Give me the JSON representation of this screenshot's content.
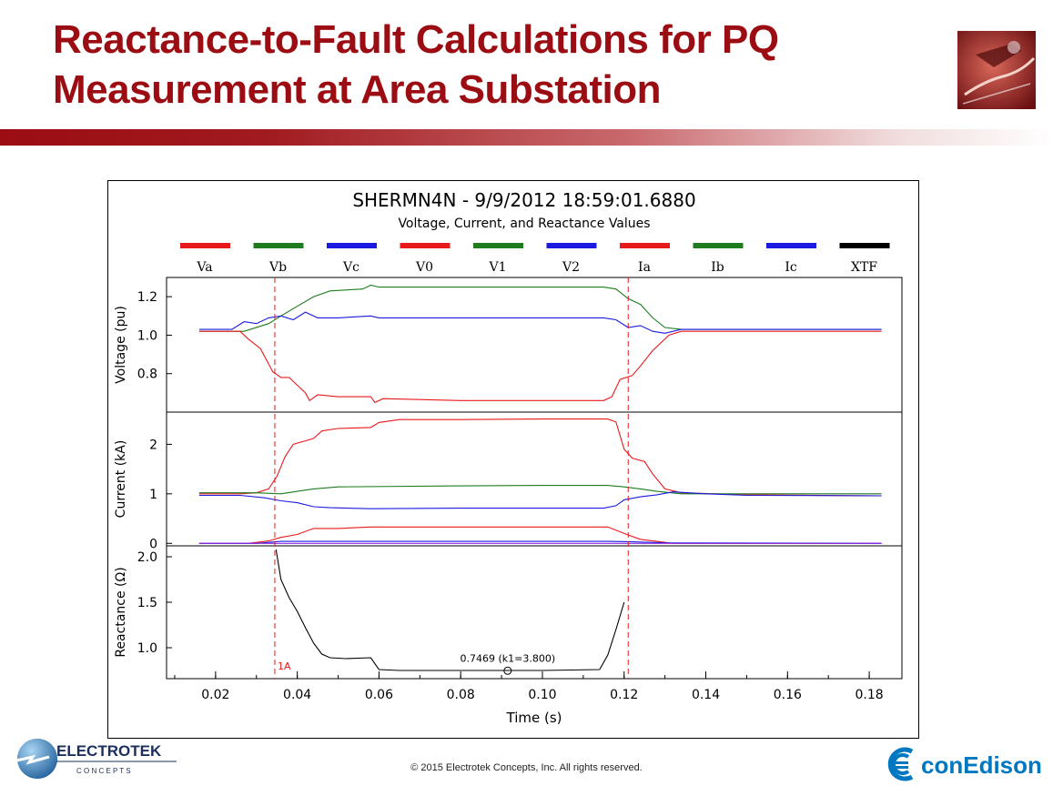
{
  "slide": {
    "title_line1": "Reactance-to-Fault Calculations for PQ",
    "title_line2": "Measurement at Area Substation",
    "copyright": "© 2015 Electrotek Concepts,  Inc. All rights reserved.",
    "logo_left_name": "ELECTROTEK",
    "logo_left_sub": "C O N C E P T S",
    "logo_right_name": "conEdison"
  },
  "chart_data": {
    "type": "line",
    "title": "SHERMN4N - 9/9/2012 18:59:01.6880",
    "subtitle": "Voltage, Current, and Reactance Values",
    "legend": [
      {
        "name": "Va",
        "color": "#e8191b"
      },
      {
        "name": "Vb",
        "color": "#1e7b1e"
      },
      {
        "name": "Vc",
        "color": "#1a1ae0"
      },
      {
        "name": "V0",
        "color": "#e8191b"
      },
      {
        "name": "V1",
        "color": "#1e7b1e"
      },
      {
        "name": "V2",
        "color": "#1a1ae0"
      },
      {
        "name": "Ia",
        "color": "#e8191b"
      },
      {
        "name": "Ib",
        "color": "#1e7b1e"
      },
      {
        "name": "Ic",
        "color": "#1a1ae0"
      },
      {
        "name": "XTF",
        "color": "#000000"
      }
    ],
    "xlabel": "Time (s)",
    "xlim": [
      0.008,
      0.188
    ],
    "xticks": [
      0.02,
      0.04,
      0.06,
      0.08,
      0.1,
      0.12,
      0.14,
      0.16,
      0.18
    ],
    "xtick_labels": [
      "0.02",
      "0.04",
      "0.06",
      "0.08",
      "0.10",
      "0.12",
      "0.14",
      "0.16",
      "0.18"
    ],
    "cursors": [
      {
        "x": 0.0345,
        "label": "1A"
      },
      {
        "x": 0.121,
        "label": ""
      }
    ],
    "panels": [
      {
        "name": "voltage",
        "ylabel": "Voltage (pu)",
        "ylim": [
          0.6,
          1.3
        ],
        "yticks": [
          0.8,
          1.0,
          1.2
        ],
        "ytick_labels": [
          "0.8",
          "1.0",
          "1.2"
        ],
        "series": [
          {
            "name": "Vb",
            "color": "#1e7b1e",
            "points": [
              [
                0.016,
                1.02
              ],
              [
                0.027,
                1.02
              ],
              [
                0.033,
                1.06
              ],
              [
                0.036,
                1.1
              ],
              [
                0.04,
                1.15
              ],
              [
                0.044,
                1.2
              ],
              [
                0.048,
                1.23
              ],
              [
                0.056,
                1.24
              ],
              [
                0.058,
                1.26
              ],
              [
                0.06,
                1.25
              ],
              [
                0.08,
                1.25
              ],
              [
                0.1,
                1.25
              ],
              [
                0.115,
                1.25
              ],
              [
                0.118,
                1.24
              ],
              [
                0.121,
                1.19
              ],
              [
                0.124,
                1.16
              ],
              [
                0.127,
                1.09
              ],
              [
                0.13,
                1.04
              ],
              [
                0.134,
                1.03
              ],
              [
                0.15,
                1.03
              ],
              [
                0.183,
                1.03
              ]
            ]
          },
          {
            "name": "Vc",
            "color": "#1a1ae0",
            "points": [
              [
                0.016,
                1.03
              ],
              [
                0.024,
                1.03
              ],
              [
                0.027,
                1.07
              ],
              [
                0.03,
                1.06
              ],
              [
                0.033,
                1.09
              ],
              [
                0.036,
                1.1
              ],
              [
                0.039,
                1.08
              ],
              [
                0.042,
                1.12
              ],
              [
                0.045,
                1.09
              ],
              [
                0.05,
                1.09
              ],
              [
                0.058,
                1.1
              ],
              [
                0.06,
                1.09
              ],
              [
                0.08,
                1.09
              ],
              [
                0.1,
                1.09
              ],
              [
                0.115,
                1.09
              ],
              [
                0.118,
                1.08
              ],
              [
                0.121,
                1.04
              ],
              [
                0.124,
                1.05
              ],
              [
                0.127,
                1.02
              ],
              [
                0.13,
                1.01
              ],
              [
                0.134,
                1.03
              ],
              [
                0.15,
                1.03
              ],
              [
                0.183,
                1.03
              ]
            ]
          },
          {
            "name": "Va",
            "color": "#e8191b",
            "points": [
              [
                0.016,
                1.02
              ],
              [
                0.026,
                1.02
              ],
              [
                0.028,
                0.98
              ],
              [
                0.031,
                0.93
              ],
              [
                0.034,
                0.81
              ],
              [
                0.036,
                0.78
              ],
              [
                0.038,
                0.78
              ],
              [
                0.04,
                0.74
              ],
              [
                0.042,
                0.7
              ],
              [
                0.043,
                0.66
              ],
              [
                0.045,
                0.69
              ],
              [
                0.05,
                0.68
              ],
              [
                0.058,
                0.68
              ],
              [
                0.059,
                0.65
              ],
              [
                0.061,
                0.67
              ],
              [
                0.08,
                0.66
              ],
              [
                0.1,
                0.66
              ],
              [
                0.115,
                0.66
              ],
              [
                0.117,
                0.68
              ],
              [
                0.119,
                0.77
              ],
              [
                0.122,
                0.79
              ],
              [
                0.124,
                0.84
              ],
              [
                0.127,
                0.92
              ],
              [
                0.131,
                1.0
              ],
              [
                0.134,
                1.02
              ],
              [
                0.15,
                1.02
              ],
              [
                0.183,
                1.02
              ]
            ]
          }
        ]
      },
      {
        "name": "current",
        "ylabel": "Current (kA)",
        "ylim": [
          -0.05,
          2.65
        ],
        "yticks": [
          0,
          1,
          2
        ],
        "ytick_labels": [
          "0",
          "1",
          "2"
        ],
        "series": [
          {
            "name": "Ia",
            "color": "#e8191b",
            "points": [
              [
                0.016,
                1.0
              ],
              [
                0.026,
                1.0
              ],
              [
                0.03,
                1.02
              ],
              [
                0.033,
                1.1
              ],
              [
                0.035,
                1.35
              ],
              [
                0.037,
                1.75
              ],
              [
                0.039,
                2.0
              ],
              [
                0.042,
                2.07
              ],
              [
                0.044,
                2.12
              ],
              [
                0.046,
                2.27
              ],
              [
                0.05,
                2.32
              ],
              [
                0.058,
                2.34
              ],
              [
                0.06,
                2.44
              ],
              [
                0.065,
                2.5
              ],
              [
                0.08,
                2.5
              ],
              [
                0.1,
                2.51
              ],
              [
                0.116,
                2.51
              ],
              [
                0.118,
                2.45
              ],
              [
                0.12,
                1.9
              ],
              [
                0.122,
                1.72
              ],
              [
                0.125,
                1.65
              ],
              [
                0.127,
                1.4
              ],
              [
                0.13,
                1.1
              ],
              [
                0.134,
                1.02
              ],
              [
                0.15,
                0.98
              ],
              [
                0.183,
                0.96
              ]
            ]
          },
          {
            "name": "Ib",
            "color": "#1e7b1e",
            "points": [
              [
                0.016,
                1.02
              ],
              [
                0.03,
                1.02
              ],
              [
                0.036,
                1.0
              ],
              [
                0.04,
                1.05
              ],
              [
                0.044,
                1.1
              ],
              [
                0.05,
                1.14
              ],
              [
                0.08,
                1.16
              ],
              [
                0.1,
                1.17
              ],
              [
                0.116,
                1.17
              ],
              [
                0.12,
                1.14
              ],
              [
                0.124,
                1.1
              ],
              [
                0.128,
                1.05
              ],
              [
                0.134,
                1.0
              ],
              [
                0.15,
                1.0
              ],
              [
                0.183,
                1.0
              ]
            ]
          },
          {
            "name": "Ic",
            "color": "#1a1ae0",
            "points": [
              [
                0.016,
                0.97
              ],
              [
                0.026,
                0.97
              ],
              [
                0.032,
                0.92
              ],
              [
                0.036,
                0.86
              ],
              [
                0.04,
                0.82
              ],
              [
                0.044,
                0.74
              ],
              [
                0.048,
                0.72
              ],
              [
                0.058,
                0.7
              ],
              [
                0.08,
                0.71
              ],
              [
                0.1,
                0.71
              ],
              [
                0.115,
                0.71
              ],
              [
                0.118,
                0.76
              ],
              [
                0.12,
                0.88
              ],
              [
                0.124,
                0.94
              ],
              [
                0.128,
                0.98
              ],
              [
                0.132,
                1.04
              ],
              [
                0.14,
                1.0
              ],
              [
                0.15,
                0.97
              ],
              [
                0.183,
                0.96
              ]
            ]
          },
          {
            "name": "V0",
            "color": "#e8191b",
            "points": [
              [
                0.016,
                0.0
              ],
              [
                0.028,
                0.0
              ],
              [
                0.033,
                0.05
              ],
              [
                0.036,
                0.12
              ],
              [
                0.04,
                0.18
              ],
              [
                0.044,
                0.3
              ],
              [
                0.05,
                0.3
              ],
              [
                0.058,
                0.33
              ],
              [
                0.08,
                0.33
              ],
              [
                0.1,
                0.33
              ],
              [
                0.116,
                0.33
              ],
              [
                0.12,
                0.2
              ],
              [
                0.124,
                0.08
              ],
              [
                0.128,
                0.04
              ],
              [
                0.132,
                0.0
              ],
              [
                0.183,
                0.0
              ]
            ]
          },
          {
            "name": "V2",
            "color": "#1a1ae0",
            "points": [
              [
                0.016,
                0.0
              ],
              [
                0.03,
                0.0
              ],
              [
                0.036,
                0.04
              ],
              [
                0.044,
                0.04
              ],
              [
                0.08,
                0.04
              ],
              [
                0.116,
                0.04
              ],
              [
                0.122,
                0.03
              ],
              [
                0.13,
                0.01
              ],
              [
                0.183,
                0.0
              ]
            ]
          },
          {
            "name": "XTF",
            "color": "#8a2be2",
            "points": [
              [
                0.016,
                0.0
              ],
              [
                0.183,
                0.0
              ]
            ]
          }
        ]
      },
      {
        "name": "reactance",
        "ylabel": "Reactance (Ω)",
        "ylim": [
          0.66,
          2.12
        ],
        "yticks": [
          1.0,
          1.5,
          2.0
        ],
        "ytick_labels": [
          "1.0",
          "1.5",
          "2.0"
        ],
        "marker": {
          "x": 0.0915,
          "y": 0.7469,
          "label": "0.7469 (k1=3.800)"
        },
        "series": [
          {
            "name": "XTF",
            "color": "#000000",
            "points": [
              [
                0.0348,
                2.08
              ],
              [
                0.036,
                1.75
              ],
              [
                0.038,
                1.55
              ],
              [
                0.04,
                1.4
              ],
              [
                0.042,
                1.22
              ],
              [
                0.044,
                1.05
              ],
              [
                0.046,
                0.93
              ],
              [
                0.048,
                0.89
              ],
              [
                0.052,
                0.88
              ],
              [
                0.058,
                0.89
              ],
              [
                0.06,
                0.76
              ],
              [
                0.065,
                0.75
              ],
              [
                0.08,
                0.75
              ],
              [
                0.1,
                0.75
              ],
              [
                0.114,
                0.76
              ],
              [
                0.116,
                0.92
              ],
              [
                0.118,
                1.2
              ],
              [
                0.12,
                1.5
              ]
            ]
          }
        ]
      }
    ]
  }
}
